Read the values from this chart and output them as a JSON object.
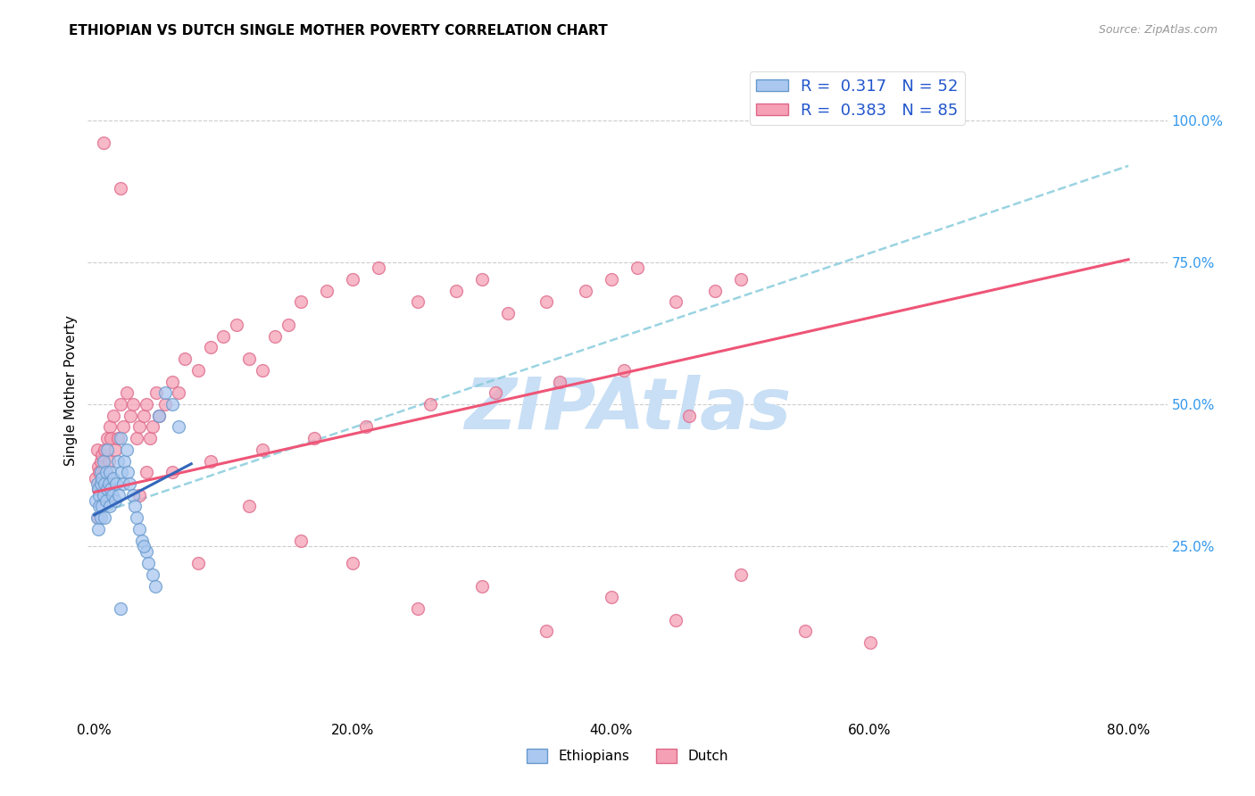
{
  "title": "ETHIOPIAN VS DUTCH SINGLE MOTHER POVERTY CORRELATION CHART",
  "source": "Source: ZipAtlas.com",
  "ylabel": "Single Mother Poverty",
  "x_tick_labels": [
    "0.0%",
    "20.0%",
    "40.0%",
    "60.0%",
    "80.0%"
  ],
  "x_tick_positions": [
    0.0,
    0.2,
    0.4,
    0.6,
    0.8
  ],
  "y_tick_labels_right": [
    "25.0%",
    "50.0%",
    "75.0%",
    "100.0%"
  ],
  "y_tick_positions_right": [
    0.25,
    0.5,
    0.75,
    1.0
  ],
  "xlim": [
    -0.005,
    0.83
  ],
  "ylim": [
    -0.05,
    1.1
  ],
  "ethiopian_color": "#aac8f0",
  "dutch_color": "#f5a0b5",
  "ethiopian_edge": "#6699cc",
  "dutch_edge": "#dd6688",
  "trend_ethiopian_color": "#3366bb",
  "trend_dutch_color": "#ee5577",
  "trend_dashed_color": "#88ccdd",
  "watermark": "ZIPAtlas",
  "watermark_color": "#c8dff5",
  "legend_R_ethiopian": "0.317",
  "legend_N_ethiopian": "52",
  "legend_R_dutch": "0.383",
  "legend_N_dutch": "85",
  "legend_label_ethiopians": "Ethiopians",
  "legend_label_dutch": "Dutch",
  "marker_size": 100,
  "ethiopian_scatter_x": [
    0.001,
    0.002,
    0.002,
    0.003,
    0.003,
    0.004,
    0.004,
    0.005,
    0.005,
    0.005,
    0.006,
    0.006,
    0.007,
    0.007,
    0.008,
    0.008,
    0.009,
    0.009,
    0.01,
    0.01,
    0.011,
    0.012,
    0.012,
    0.013,
    0.014,
    0.015,
    0.016,
    0.017,
    0.018,
    0.019,
    0.02,
    0.021,
    0.022,
    0.023,
    0.025,
    0.026,
    0.027,
    0.03,
    0.031,
    0.033,
    0.035,
    0.037,
    0.04,
    0.042,
    0.045,
    0.047,
    0.05,
    0.055,
    0.06,
    0.065,
    0.02,
    0.038
  ],
  "ethiopian_scatter_y": [
    0.33,
    0.36,
    0.3,
    0.35,
    0.28,
    0.34,
    0.32,
    0.38,
    0.36,
    0.3,
    0.37,
    0.32,
    0.4,
    0.34,
    0.36,
    0.3,
    0.38,
    0.33,
    0.42,
    0.35,
    0.36,
    0.38,
    0.32,
    0.35,
    0.34,
    0.37,
    0.33,
    0.36,
    0.4,
    0.34,
    0.44,
    0.38,
    0.36,
    0.4,
    0.42,
    0.38,
    0.36,
    0.34,
    0.32,
    0.3,
    0.28,
    0.26,
    0.24,
    0.22,
    0.2,
    0.18,
    0.48,
    0.52,
    0.5,
    0.46,
    0.14,
    0.25
  ],
  "dutch_scatter_x": [
    0.001,
    0.002,
    0.003,
    0.003,
    0.004,
    0.005,
    0.005,
    0.006,
    0.007,
    0.008,
    0.009,
    0.01,
    0.011,
    0.012,
    0.013,
    0.015,
    0.016,
    0.018,
    0.02,
    0.022,
    0.025,
    0.028,
    0.03,
    0.033,
    0.035,
    0.038,
    0.04,
    0.043,
    0.045,
    0.048,
    0.05,
    0.055,
    0.06,
    0.065,
    0.07,
    0.08,
    0.09,
    0.1,
    0.11,
    0.12,
    0.13,
    0.14,
    0.15,
    0.16,
    0.18,
    0.2,
    0.22,
    0.25,
    0.28,
    0.3,
    0.32,
    0.35,
    0.38,
    0.4,
    0.42,
    0.45,
    0.48,
    0.5,
    0.003,
    0.04,
    0.08,
    0.12,
    0.16,
    0.2,
    0.25,
    0.3,
    0.35,
    0.4,
    0.45,
    0.5,
    0.007,
    0.02,
    0.035,
    0.06,
    0.09,
    0.13,
    0.17,
    0.21,
    0.26,
    0.31,
    0.36,
    0.41,
    0.46,
    0.55,
    0.6
  ],
  "dutch_scatter_y": [
    0.37,
    0.42,
    0.35,
    0.39,
    0.38,
    0.4,
    0.36,
    0.41,
    0.38,
    0.42,
    0.38,
    0.44,
    0.4,
    0.46,
    0.44,
    0.48,
    0.42,
    0.44,
    0.5,
    0.46,
    0.52,
    0.48,
    0.5,
    0.44,
    0.46,
    0.48,
    0.5,
    0.44,
    0.46,
    0.52,
    0.48,
    0.5,
    0.54,
    0.52,
    0.58,
    0.56,
    0.6,
    0.62,
    0.64,
    0.58,
    0.56,
    0.62,
    0.64,
    0.68,
    0.7,
    0.72,
    0.74,
    0.68,
    0.7,
    0.72,
    0.66,
    0.68,
    0.7,
    0.72,
    0.74,
    0.68,
    0.7,
    0.72,
    0.3,
    0.38,
    0.22,
    0.32,
    0.26,
    0.22,
    0.14,
    0.18,
    0.1,
    0.16,
    0.12,
    0.2,
    0.96,
    0.88,
    0.34,
    0.38,
    0.4,
    0.42,
    0.44,
    0.46,
    0.5,
    0.52,
    0.54,
    0.56,
    0.48,
    0.1,
    0.08
  ],
  "eth_trend_x0": 0.0,
  "eth_trend_x1": 0.075,
  "eth_trend_y0": 0.305,
  "eth_trend_y1": 0.395,
  "dutch_trend_x0": 0.0,
  "dutch_trend_x1": 0.8,
  "dutch_trend_y0": 0.345,
  "dutch_trend_y1": 0.755,
  "dash_trend_x0": 0.0,
  "dash_trend_x1": 0.8,
  "dash_trend_y0": 0.305,
  "dash_trend_y1": 0.92
}
